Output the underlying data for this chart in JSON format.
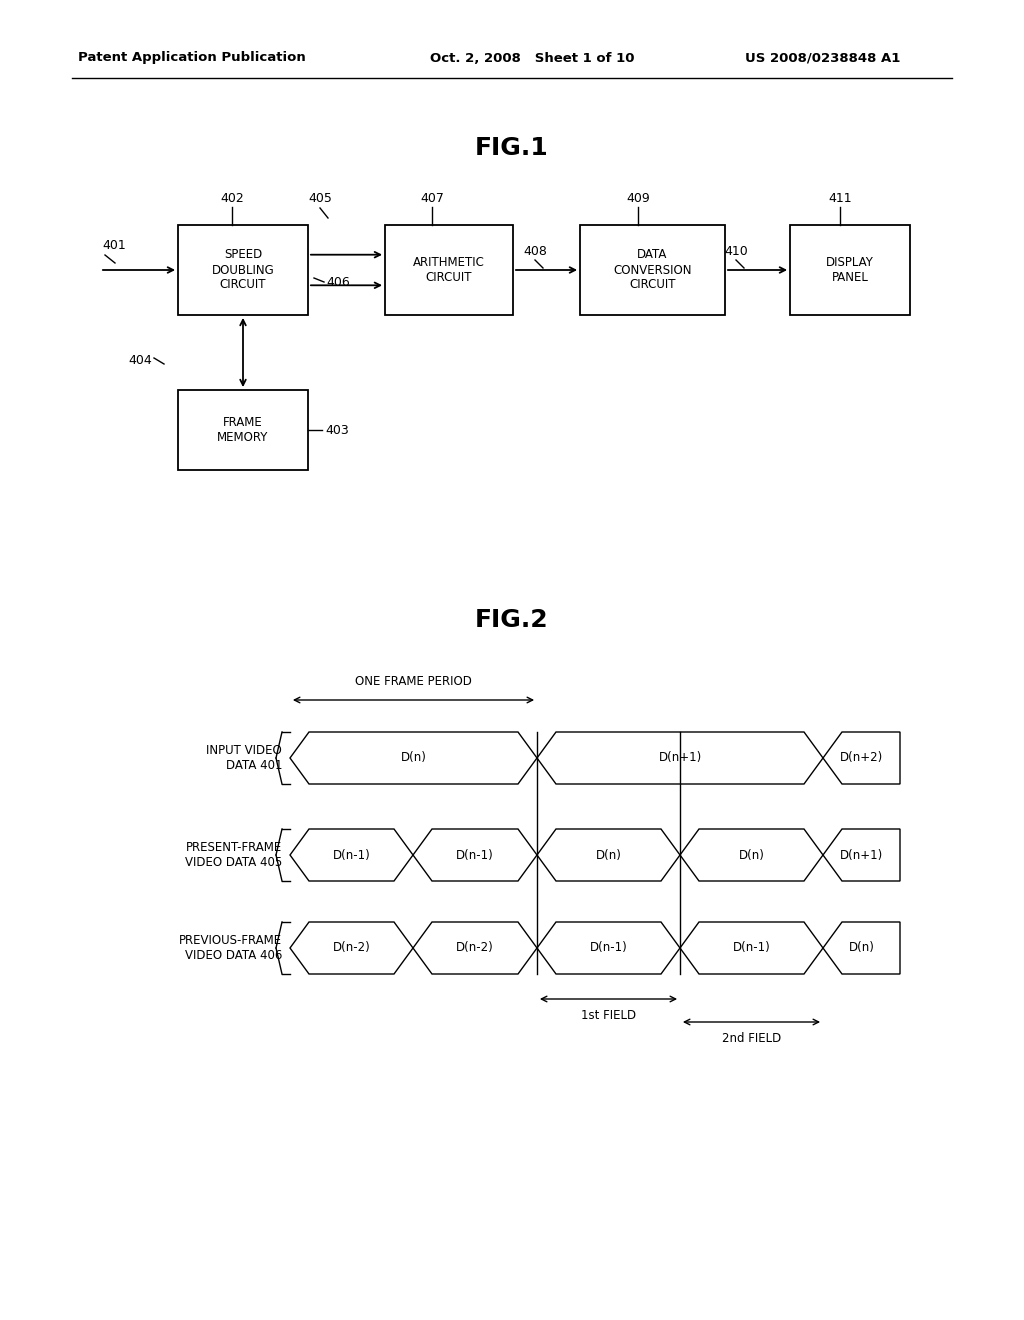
{
  "bg_color": "#ffffff",
  "header_left": "Patent Application Publication",
  "header_mid": "Oct. 2, 2008   Sheet 1 of 10",
  "header_right": "US 2008/0238848 A1",
  "fig1_title": "FIG.1",
  "fig2_title": "FIG.2",
  "text_color": "#000000",
  "line_color": "#000000"
}
